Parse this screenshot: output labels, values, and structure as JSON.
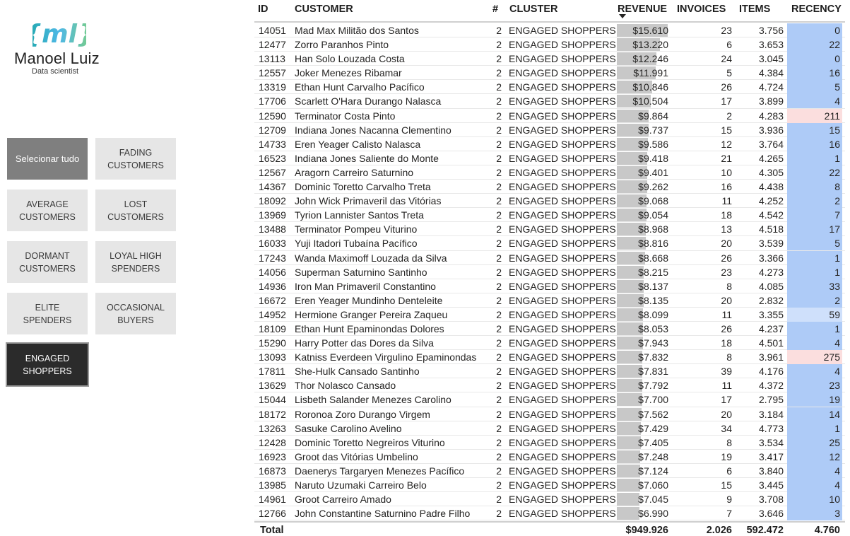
{
  "logo": {
    "mark": "{ml}",
    "name": "Manoel Luiz",
    "subtitle": "Data scientist"
  },
  "colors": {
    "recency_low": "#aecbf7",
    "recency_mid": "#cfe0fb",
    "recency_high": "#fbdede",
    "revenue_bar": "#c8c8c8",
    "selected": "#2b2b2b",
    "select_all": "#7f7f7f"
  },
  "slicer": {
    "items": [
      {
        "label": "Selecionar tudo",
        "state": "all"
      },
      {
        "label": "FADING\nCUSTOMERS",
        "state": ""
      },
      {
        "label": "AVERAGE\nCUSTOMERS",
        "state": ""
      },
      {
        "label": "LOST\nCUSTOMERS",
        "state": ""
      },
      {
        "label": "DORMANT\nCUSTOMERS",
        "state": ""
      },
      {
        "label": "LOYAL HIGH\nSPENDERS",
        "state": ""
      },
      {
        "label": "ELITE\nSPENDERS",
        "state": ""
      },
      {
        "label": "OCCASIONAL\nBUYERS",
        "state": ""
      },
      {
        "label": "ENGAGED\nSHOPPERS",
        "state": "selected"
      }
    ]
  },
  "table": {
    "headers": {
      "id": "ID",
      "customer": "CUSTOMER",
      "num": "#",
      "cluster": "CLUSTER",
      "revenue": "REVENUE",
      "invoices": "INVOICES",
      "items": "ITEMS",
      "recency": "RECENCY"
    },
    "sort": {
      "column": "revenue",
      "direction": "desc"
    },
    "rows": [
      {
        "id": "14051",
        "customer": "Mad Max Militão dos Santos",
        "num": "2",
        "cluster": "ENGAGED SHOPPERS",
        "revenue": "$15.610",
        "revenue_value": 15610,
        "invoices": "23",
        "items": "3.756",
        "recency": "0"
      },
      {
        "id": "12477",
        "customer": "Zorro Paranhos Pinto",
        "num": "2",
        "cluster": "ENGAGED SHOPPERS",
        "revenue": "$13.220",
        "revenue_value": 13220,
        "invoices": "6",
        "items": "3.653",
        "recency": "22"
      },
      {
        "id": "13113",
        "customer": "Han Solo Louzada Costa",
        "num": "2",
        "cluster": "ENGAGED SHOPPERS",
        "revenue": "$12.246",
        "revenue_value": 12246,
        "invoices": "24",
        "items": "3.045",
        "recency": "0"
      },
      {
        "id": "12557",
        "customer": "Joker Menezes Ribamar",
        "num": "2",
        "cluster": "ENGAGED SHOPPERS",
        "revenue": "$11.991",
        "revenue_value": 11991,
        "invoices": "5",
        "items": "4.384",
        "recency": "16"
      },
      {
        "id": "13319",
        "customer": "Ethan Hunt Carvalho Pacífico",
        "num": "2",
        "cluster": "ENGAGED SHOPPERS",
        "revenue": "$10.846",
        "revenue_value": 10846,
        "invoices": "26",
        "items": "4.724",
        "recency": "5"
      },
      {
        "id": "17706",
        "customer": "Scarlett O'Hara Durango Nalasca",
        "num": "2",
        "cluster": "ENGAGED SHOPPERS",
        "revenue": "$10.504",
        "revenue_value": 10504,
        "invoices": "17",
        "items": "3.899",
        "recency": "4"
      },
      {
        "id": "12590",
        "customer": "Terminator Costa Pinto",
        "num": "2",
        "cluster": "ENGAGED SHOPPERS",
        "revenue": "$9.864",
        "revenue_value": 9864,
        "invoices": "2",
        "items": "4.283",
        "recency": "211"
      },
      {
        "id": "12709",
        "customer": "Indiana Jones Nacanna Clementino",
        "num": "2",
        "cluster": "ENGAGED SHOPPERS",
        "revenue": "$9.737",
        "revenue_value": 9737,
        "invoices": "15",
        "items": "3.936",
        "recency": "15"
      },
      {
        "id": "14733",
        "customer": "Eren Yeager Calisto Nalasca",
        "num": "2",
        "cluster": "ENGAGED SHOPPERS",
        "revenue": "$9.586",
        "revenue_value": 9586,
        "invoices": "12",
        "items": "3.764",
        "recency": "16"
      },
      {
        "id": "16523",
        "customer": "Indiana Jones Saliente do Monte",
        "num": "2",
        "cluster": "ENGAGED SHOPPERS",
        "revenue": "$9.418",
        "revenue_value": 9418,
        "invoices": "21",
        "items": "4.265",
        "recency": "1"
      },
      {
        "id": "12567",
        "customer": "Aragorn Carreiro Saturnino",
        "num": "2",
        "cluster": "ENGAGED SHOPPERS",
        "revenue": "$9.401",
        "revenue_value": 9401,
        "invoices": "10",
        "items": "4.305",
        "recency": "22"
      },
      {
        "id": "14367",
        "customer": "Dominic Toretto Carvalho Treta",
        "num": "2",
        "cluster": "ENGAGED SHOPPERS",
        "revenue": "$9.262",
        "revenue_value": 9262,
        "invoices": "16",
        "items": "4.438",
        "recency": "8"
      },
      {
        "id": "18092",
        "customer": "John Wick Primaveril das Vitórias",
        "num": "2",
        "cluster": "ENGAGED SHOPPERS",
        "revenue": "$9.068",
        "revenue_value": 9068,
        "invoices": "11",
        "items": "4.252",
        "recency": "2"
      },
      {
        "id": "13969",
        "customer": "Tyrion Lannister Santos Treta",
        "num": "2",
        "cluster": "ENGAGED SHOPPERS",
        "revenue": "$9.054",
        "revenue_value": 9054,
        "invoices": "18",
        "items": "4.542",
        "recency": "7"
      },
      {
        "id": "13488",
        "customer": "Terminator Pompeu Viturino",
        "num": "2",
        "cluster": "ENGAGED SHOPPERS",
        "revenue": "$8.968",
        "revenue_value": 8968,
        "invoices": "13",
        "items": "4.518",
        "recency": "17"
      },
      {
        "id": "16033",
        "customer": "Yuji Itadori Tubaína Pacífico",
        "num": "2",
        "cluster": "ENGAGED SHOPPERS",
        "revenue": "$8.816",
        "revenue_value": 8816,
        "invoices": "20",
        "items": "3.539",
        "recency": "5"
      },
      {
        "id": "17243",
        "customer": "Wanda Maximoff Louzada da Silva",
        "num": "2",
        "cluster": "ENGAGED SHOPPERS",
        "revenue": "$8.668",
        "revenue_value": 8668,
        "invoices": "26",
        "items": "3.366",
        "recency": "1"
      },
      {
        "id": "14056",
        "customer": "Superman Saturnino Santinho",
        "num": "2",
        "cluster": "ENGAGED SHOPPERS",
        "revenue": "$8.215",
        "revenue_value": 8215,
        "invoices": "23",
        "items": "4.273",
        "recency": "1"
      },
      {
        "id": "14936",
        "customer": "Iron Man Primaveril Constantino",
        "num": "2",
        "cluster": "ENGAGED SHOPPERS",
        "revenue": "$8.137",
        "revenue_value": 8137,
        "invoices": "8",
        "items": "4.085",
        "recency": "33"
      },
      {
        "id": "16672",
        "customer": "Eren Yeager Mundinho Denteleite",
        "num": "2",
        "cluster": "ENGAGED SHOPPERS",
        "revenue": "$8.135",
        "revenue_value": 8135,
        "invoices": "20",
        "items": "2.832",
        "recency": "2"
      },
      {
        "id": "14952",
        "customer": "Hermione Granger Pereira Zaqueu",
        "num": "2",
        "cluster": "ENGAGED SHOPPERS",
        "revenue": "$8.099",
        "revenue_value": 8099,
        "invoices": "11",
        "items": "3.355",
        "recency": "59"
      },
      {
        "id": "18109",
        "customer": "Ethan Hunt Epaminondas Dolores",
        "num": "2",
        "cluster": "ENGAGED SHOPPERS",
        "revenue": "$8.053",
        "revenue_value": 8053,
        "invoices": "26",
        "items": "4.237",
        "recency": "1"
      },
      {
        "id": "15290",
        "customer": "Harry Potter das Dores da Silva",
        "num": "2",
        "cluster": "ENGAGED SHOPPERS",
        "revenue": "$7.943",
        "revenue_value": 7943,
        "invoices": "18",
        "items": "4.501",
        "recency": "4"
      },
      {
        "id": "13093",
        "customer": "Katniss Everdeen Virgulino Epaminondas",
        "num": "2",
        "cluster": "ENGAGED SHOPPERS",
        "revenue": "$7.832",
        "revenue_value": 7832,
        "invoices": "8",
        "items": "3.961",
        "recency": "275"
      },
      {
        "id": "17811",
        "customer": "She-Hulk Cansado Santinho",
        "num": "2",
        "cluster": "ENGAGED SHOPPERS",
        "revenue": "$7.831",
        "revenue_value": 7831,
        "invoices": "39",
        "items": "4.176",
        "recency": "4"
      },
      {
        "id": "13629",
        "customer": "Thor Nolasco Cansado",
        "num": "2",
        "cluster": "ENGAGED SHOPPERS",
        "revenue": "$7.792",
        "revenue_value": 7792,
        "invoices": "11",
        "items": "4.372",
        "recency": "23"
      },
      {
        "id": "15044",
        "customer": "Lisbeth Salander Menezes Carolino",
        "num": "2",
        "cluster": "ENGAGED SHOPPERS",
        "revenue": "$7.700",
        "revenue_value": 7700,
        "invoices": "17",
        "items": "2.795",
        "recency": "19"
      },
      {
        "id": "18172",
        "customer": "Roronoa Zoro Durango Virgem",
        "num": "2",
        "cluster": "ENGAGED SHOPPERS",
        "revenue": "$7.562",
        "revenue_value": 7562,
        "invoices": "20",
        "items": "3.184",
        "recency": "14"
      },
      {
        "id": "13263",
        "customer": "Sasuke Carolino Avelino",
        "num": "2",
        "cluster": "ENGAGED SHOPPERS",
        "revenue": "$7.429",
        "revenue_value": 7429,
        "invoices": "34",
        "items": "4.773",
        "recency": "1"
      },
      {
        "id": "12428",
        "customer": "Dominic Toretto Negreiros Viturino",
        "num": "2",
        "cluster": "ENGAGED SHOPPERS",
        "revenue": "$7.405",
        "revenue_value": 7405,
        "invoices": "8",
        "items": "3.534",
        "recency": "25"
      },
      {
        "id": "16923",
        "customer": "Groot das Vitórias Umbelino",
        "num": "2",
        "cluster": "ENGAGED SHOPPERS",
        "revenue": "$7.248",
        "revenue_value": 7248,
        "invoices": "19",
        "items": "3.417",
        "recency": "12"
      },
      {
        "id": "16873",
        "customer": "Daenerys Targaryen Menezes Pacífico",
        "num": "2",
        "cluster": "ENGAGED SHOPPERS",
        "revenue": "$7.124",
        "revenue_value": 7124,
        "invoices": "6",
        "items": "3.840",
        "recency": "4"
      },
      {
        "id": "13985",
        "customer": "Naruto Uzumaki Carreiro Belo",
        "num": "2",
        "cluster": "ENGAGED SHOPPERS",
        "revenue": "$7.060",
        "revenue_value": 7060,
        "invoices": "15",
        "items": "3.445",
        "recency": "4"
      },
      {
        "id": "14961",
        "customer": "Groot Carreiro Amado",
        "num": "2",
        "cluster": "ENGAGED SHOPPERS",
        "revenue": "$7.045",
        "revenue_value": 7045,
        "invoices": "9",
        "items": "3.708",
        "recency": "10"
      },
      {
        "id": "12766",
        "customer": "John Constantine Saturnino Padre Filho",
        "num": "2",
        "cluster": "ENGAGED SHOPPERS",
        "revenue": "$6.990",
        "revenue_value": 6990,
        "invoices": "7",
        "items": "3.646",
        "recency": "3"
      }
    ],
    "totals": {
      "label": "Total",
      "revenue": "$949.926",
      "invoices": "2.026",
      "items": "592.472",
      "recency": "4.760"
    }
  }
}
